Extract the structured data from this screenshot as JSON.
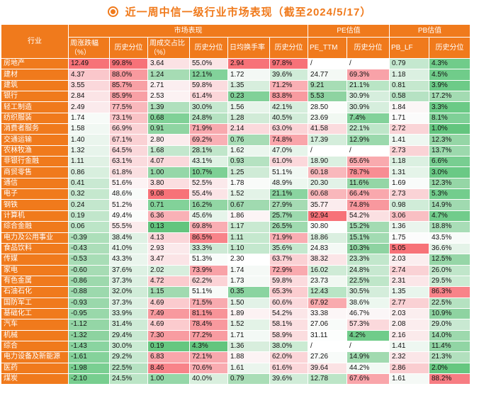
{
  "title": "近一周中信一级行业市场表现（截至2024/5/17）",
  "header": {
    "industry": "行业",
    "groups": [
      "市场表现",
      "PE估值",
      "PB估值"
    ],
    "columns": [
      "周涨跌幅（%）",
      "历史分位",
      "周成交占比（%）",
      "历史分位",
      "日均换手率",
      "历史分位",
      "PE_TTM",
      "历史分位",
      "PB_LF",
      "历史分位"
    ]
  },
  "rows": [
    {
      "name": "房地产",
      "cells": [
        [
          "12.49",
          "#f77278"
        ],
        [
          "99.8%",
          "#f77278"
        ],
        [
          "3.64",
          "#fbe2e4"
        ],
        [
          "55.0%",
          "#fbe5e6"
        ],
        [
          "2.94",
          "#f77278"
        ],
        [
          "97.8%",
          "#f77278"
        ],
        [
          "/",
          "#ffffff"
        ],
        [
          "/",
          "#ffffff"
        ],
        [
          "0.79",
          "#c4e8cf"
        ],
        [
          "4.3%",
          "#70cc8a"
        ]
      ]
    },
    {
      "name": "建材",
      "cells": [
        [
          "4.37",
          "#fac7cb"
        ],
        [
          "88.0%",
          "#f8999e"
        ],
        [
          "1.24",
          "#a6dcb4"
        ],
        [
          "12.1%",
          "#82d29a"
        ],
        [
          "1.72",
          "#f4f8f5"
        ],
        [
          "39.6%",
          "#d0ecd8"
        ],
        [
          "24.77",
          "#f4f9f5"
        ],
        [
          "69.3%",
          "#f8a2a8"
        ],
        [
          "1.18",
          "#dbf0e1"
        ],
        [
          "4.5%",
          "#70cc8a"
        ]
      ]
    },
    {
      "name": "建筑",
      "cells": [
        [
          "3.55",
          "#fbd8db"
        ],
        [
          "85.7%",
          "#f8a0a5"
        ],
        [
          "2.71",
          "#fbeef0"
        ],
        [
          "59.8%",
          "#fbdcdf"
        ],
        [
          "1.35",
          "#d7eedd"
        ],
        [
          "71.2%",
          "#faafb4"
        ],
        [
          "9.21",
          "#a7ddb5"
        ],
        [
          "21.1%",
          "#b9e5c5"
        ],
        [
          "0.81",
          "#c5e8ce"
        ],
        [
          "3.9%",
          "#6dcb88"
        ]
      ]
    },
    {
      "name": "银行",
      "cells": [
        [
          "2.84",
          "#fbe4e6"
        ],
        [
          "85.9%",
          "#f8a0a5"
        ],
        [
          "2.53",
          "#fcf2f3"
        ],
        [
          "61.4%",
          "#fbd6d9"
        ],
        [
          "0.23",
          "#81d198"
        ],
        [
          "83.8%",
          "#f89ba0"
        ],
        [
          "5.53",
          "#8ed3a1"
        ],
        [
          "30.9%",
          "#d6eedd"
        ],
        [
          "0.58",
          "#b6e2c3"
        ],
        [
          "17.2%",
          "#a3dbb2"
        ]
      ]
    },
    {
      "name": "轻工制造",
      "cells": [
        [
          "2.49",
          "#fbeaec"
        ],
        [
          "77.5%",
          "#f9b8bc"
        ],
        [
          "1.39",
          "#b0e0bd"
        ],
        [
          "30.0%",
          "#c5e8cf"
        ],
        [
          "1.56",
          "#e7f4ea"
        ],
        [
          "42.1%",
          "#d6eedd"
        ],
        [
          "28.50",
          "#fbfdfb"
        ],
        [
          "30.9%",
          "#d6eedd"
        ],
        [
          "1.84",
          "#fbf6f6"
        ],
        [
          "3.3%",
          "#6bca86"
        ]
      ]
    },
    {
      "name": "纺织服装",
      "cells": [
        [
          "1.74",
          "#f7fbf8"
        ],
        [
          "73.1%",
          "#f9c3c6"
        ],
        [
          "0.68",
          "#80d197"
        ],
        [
          "24.8%",
          "#b5e2c1"
        ],
        [
          "1.28",
          "#d1ebd7"
        ],
        [
          "40.5%",
          "#d2ecd9"
        ],
        [
          "23.69",
          "#f1f8f2"
        ],
        [
          "7.4%",
          "#82d29a"
        ],
        [
          "1.71",
          "#fbfbfb"
        ],
        [
          "8.1%",
          "#7fd097"
        ]
      ]
    },
    {
      "name": "消费者服务",
      "cells": [
        [
          "1.58",
          "#f1f8f3"
        ],
        [
          "66.9%",
          "#fad2d5"
        ],
        [
          "0.91",
          "#8fd5a2"
        ],
        [
          "71.9%",
          "#f8a9ae"
        ],
        [
          "2.14",
          "#fbd9dc"
        ],
        [
          "63.0%",
          "#fbd3d6"
        ],
        [
          "41.58",
          "#fbdbde"
        ],
        [
          "22.1%",
          "#bee6c9"
        ],
        [
          "2.72",
          "#fad4d7"
        ],
        [
          "1.0%",
          "#63c57e"
        ]
      ]
    },
    {
      "name": "交通运输",
      "cells": [
        [
          "1.40",
          "#eaf5ed"
        ],
        [
          "67.1%",
          "#fad1d4"
        ],
        [
          "2.80",
          "#fbeced"
        ],
        [
          "69.2%",
          "#f9b0b5"
        ],
        [
          "0.76",
          "#a7dcb5"
        ],
        [
          "74.8%",
          "#f9a5aa"
        ],
        [
          "17.39",
          "#d4eddb"
        ],
        [
          "12.9%",
          "#9bd9ad"
        ],
        [
          "1.41",
          "#eef7f1"
        ],
        [
          "12.3%",
          "#95d6a6"
        ]
      ]
    },
    {
      "name": "农林牧渔",
      "cells": [
        [
          "1.32",
          "#e7f4eb"
        ],
        [
          "64.5%",
          "#fad8db"
        ],
        [
          "1.68",
          "#c3e7cd"
        ],
        [
          "28.1%",
          "#c0e6ca"
        ],
        [
          "1.62",
          "#ebf6ee"
        ],
        [
          "47.0%",
          "#e6f4ea"
        ],
        [
          "/",
          "#ffffff"
        ],
        [
          "/",
          "#ffffff"
        ],
        [
          "2.73",
          "#fad3d6"
        ],
        [
          "13.7%",
          "#9cd9ad"
        ]
      ]
    },
    {
      "name": "非银行金融",
      "cells": [
        [
          "1.11",
          "#e0f1e4"
        ],
        [
          "63.1%",
          "#fadbde"
        ],
        [
          "4.07",
          "#fad8db"
        ],
        [
          "43.1%",
          "#dff2e4"
        ],
        [
          "0.93",
          "#b5e2c1"
        ],
        [
          "61.0%",
          "#fbd8db"
        ],
        [
          "18.90",
          "#dbf0e1"
        ],
        [
          "65.6%",
          "#f9aaae"
        ],
        [
          "1.18",
          "#dbf0e1"
        ],
        [
          "6.6%",
          "#78ce91"
        ]
      ]
    },
    {
      "name": "商贸零售",
      "cells": [
        [
          "0.86",
          "#d8efde"
        ],
        [
          "61.8%",
          "#fadfe1"
        ],
        [
          "1.00",
          "#95d7a8"
        ],
        [
          "10.7%",
          "#7dd095"
        ],
        [
          "1.25",
          "#cfebd6"
        ],
        [
          "51.1%",
          "#f1f8f3"
        ],
        [
          "60.18",
          "#f9b8bc"
        ],
        [
          "78.7%",
          "#f88d93"
        ],
        [
          "1.31",
          "#e5f4e9"
        ],
        [
          "3.0%",
          "#6ac985"
        ]
      ]
    },
    {
      "name": "通信",
      "cells": [
        [
          "0.41",
          "#c9e9d2"
        ],
        [
          "51.6%",
          "#fcf3f4"
        ],
        [
          "3.80",
          "#fbdee0"
        ],
        [
          "52.5%",
          "#fbe9eb"
        ],
        [
          "1.78",
          "#f9fbf9"
        ],
        [
          "48.9%",
          "#ecf7ef"
        ],
        [
          "20.30",
          "#e2f2e7"
        ],
        [
          "11.6%",
          "#94d6a6"
        ],
        [
          "1.69",
          "#f9fbfa"
        ],
        [
          "12.3%",
          "#95d6a6"
        ]
      ]
    },
    {
      "name": "电子",
      "cells": [
        [
          "0.32",
          "#c5e8ce"
        ],
        [
          "48.6%",
          "#f8fbf9"
        ],
        [
          "9.08",
          "#f77278"
        ],
        [
          "55.4%",
          "#fbe4e6"
        ],
        [
          "1.52",
          "#e3f3e7"
        ],
        [
          "21.1%",
          "#8ad4a0"
        ],
        [
          "60.68",
          "#f9b7bb"
        ],
        [
          "66.4%",
          "#f9a8ad"
        ],
        [
          "2.73",
          "#fad3d6"
        ],
        [
          "5.3%",
          "#73cd8d"
        ]
      ]
    },
    {
      "name": "钢铁",
      "cells": [
        [
          "0.24",
          "#c3e7cd"
        ],
        [
          "51.2%",
          "#fcf4f5"
        ],
        [
          "0.71",
          "#82d299"
        ],
        [
          "16.2%",
          "#92d6a4"
        ],
        [
          "0.67",
          "#a0dab0"
        ],
        [
          "27.9%",
          "#a5dbb3"
        ],
        [
          "35.77",
          "#fbecee"
        ],
        [
          "74.8%",
          "#f8989e"
        ],
        [
          "0.98",
          "#d0ecd8"
        ],
        [
          "14.9%",
          "#a0dab0"
        ]
      ]
    },
    {
      "name": "计算机",
      "cells": [
        [
          "0.19",
          "#c1e6cb"
        ],
        [
          "49.4%",
          "#fafcfa"
        ],
        [
          "6.36",
          "#f9b1b6"
        ],
        [
          "45.6%",
          "#e6f4ea"
        ],
        [
          "1.86",
          "#fcf4f5"
        ],
        [
          "25.7%",
          "#9cd9ad"
        ],
        [
          "92.94",
          "#f77278"
        ],
        [
          "54.2%",
          "#fbe0e2"
        ],
        [
          "3.06",
          "#f9bfc3"
        ],
        [
          "4.7%",
          "#71cc8b"
        ]
      ]
    },
    {
      "name": "综合金融",
      "cells": [
        [
          "0.06",
          "#bce5c7"
        ],
        [
          "55.5%",
          "#fbebec"
        ],
        [
          "0.13",
          "#63c57e"
        ],
        [
          "69.8%",
          "#f9aeb3"
        ],
        [
          "1.17",
          "#c9e9d1"
        ],
        [
          "26.5%",
          "#9fdaaf"
        ],
        [
          "30.80",
          "#fcfefd"
        ],
        [
          "15.2%",
          "#a3dbb2"
        ],
        [
          "1.36",
          "#eaf5ed"
        ],
        [
          "18.8%",
          "#a9ddb7"
        ]
      ]
    },
    {
      "name": "电力及公用事业",
      "cells": [
        [
          "-0.39",
          "#addfba"
        ],
        [
          "38.4%",
          "#dff1e4"
        ],
        [
          "4.13",
          "#fad6d9"
        ],
        [
          "86.5%",
          "#f88389"
        ],
        [
          "1.11",
          "#c5e8ce"
        ],
        [
          "71.9%",
          "#f9adb2"
        ],
        [
          "18.86",
          "#daefe0"
        ],
        [
          "15.1%",
          "#a2dbb2"
        ],
        [
          "1.75",
          "#fcfcfc"
        ],
        [
          "43.5%",
          "#f8fbf9"
        ]
      ]
    },
    {
      "name": "食品饮料",
      "cells": [
        [
          "-0.43",
          "#acdeb9"
        ],
        [
          "41.0%",
          "#e5f4e9"
        ],
        [
          "2.93",
          "#fbe9eb"
        ],
        [
          "33.3%",
          "#cde9d5"
        ],
        [
          "1.10",
          "#c4e8ce"
        ],
        [
          "35.6%",
          "#c4e8ce"
        ],
        [
          "24.83",
          "#f4f9f5"
        ],
        [
          "10.3%",
          "#8ed3a1"
        ],
        [
          "5.05",
          "#f77278"
        ],
        [
          "36.6%",
          "#e4f3e8"
        ]
      ]
    },
    {
      "name": "传媒",
      "cells": [
        [
          "-0.53",
          "#a8ddb6"
        ],
        [
          "43.3%",
          "#eaf5ed"
        ],
        [
          "3.47",
          "#fbe4e6"
        ],
        [
          "51.3%",
          "#f9fcfa"
        ],
        [
          "2.30",
          "#face0d1"
        ],
        [
          "63.7%",
          "#fbd1d4"
        ],
        [
          "38.32",
          "#fbe5e7"
        ],
        [
          "23.3%",
          "#c2e7cc"
        ],
        [
          "2.03",
          "#fbeeef"
        ],
        [
          "12.5%",
          "#96d6a7"
        ]
      ]
    },
    {
      "name": "家电",
      "cells": [
        [
          "-0.60",
          "#a6dcb4"
        ],
        [
          "37.6%",
          "#ddf1e3"
        ],
        [
          "2.02",
          "#d7eedd"
        ],
        [
          "73.9%",
          "#f8a2a7"
        ],
        [
          "1.74",
          "#f5f9f6"
        ],
        [
          "72.9%",
          "#f9aaaf"
        ],
        [
          "16.02",
          "#cfebd6"
        ],
        [
          "24.8%",
          "#c7e8d0"
        ],
        [
          "2.74",
          "#fad2d5"
        ],
        [
          "26.0%",
          "#c0e6ca"
        ]
      ]
    },
    {
      "name": "有色金属",
      "cells": [
        [
          "-0.86",
          "#9dd9ad"
        ],
        [
          "37.3%",
          "#dcf0e2"
        ],
        [
          "4.72",
          "#fbcbce"
        ],
        [
          "62.2%",
          "#fbd3d6"
        ],
        [
          "1.73",
          "#f5f9f6"
        ],
        [
          "59.8%",
          "#fbdbde"
        ],
        [
          "23.73",
          "#f1f8f2"
        ],
        [
          "22.5%",
          "#bfe6c9"
        ],
        [
          "2.31",
          "#fbe6e8"
        ],
        [
          "29.5%",
          "#cbebd3"
        ]
      ]
    },
    {
      "name": "石油石化",
      "cells": [
        [
          "-0.88",
          "#9cd9ad"
        ],
        [
          "32.0%",
          "#d0ecd8"
        ],
        [
          "1.15",
          "#a1dab0"
        ],
        [
          "51.1%",
          "#f7fbf8"
        ],
        [
          "0.35",
          "#8ad4a0"
        ],
        [
          "65.3%",
          "#fbcdd0"
        ],
        [
          "12.43",
          "#b9e5c5"
        ],
        [
          "30.5%",
          "#d4eddb"
        ],
        [
          "1.35",
          "#e8f5ec"
        ],
        [
          "86.3%",
          "#f88389"
        ]
      ]
    },
    {
      "name": "国防军工",
      "cells": [
        [
          "-0.93",
          "#9ad8ab"
        ],
        [
          "37.3%",
          "#dcf0e2"
        ],
        [
          "4.69",
          "#fbcbce"
        ],
        [
          "71.5%",
          "#f8aaaf"
        ],
        [
          "1.50",
          "#e2f2e7"
        ],
        [
          "60.6%",
          "#fbd9dc"
        ],
        [
          "67.92",
          "#f9aaae"
        ],
        [
          "38.6%",
          "#ecf7ef"
        ],
        [
          "2.77",
          "#fad1d4"
        ],
        [
          "22.5%",
          "#b5e2c1"
        ]
      ]
    },
    {
      "name": "基础化工",
      "cells": [
        [
          "-0.95",
          "#99d8aa"
        ],
        [
          "33.9%",
          "#d4eddb"
        ],
        [
          "7.49",
          "#f8999e"
        ],
        [
          "81.1%",
          "#f89398"
        ],
        [
          "1.89",
          "#fcf2f3"
        ],
        [
          "54.2%",
          "#fbe6e8"
        ],
        [
          "33.38",
          "#fcf6f7"
        ],
        [
          "46.7%",
          "#fbf6f7"
        ],
        [
          "2.03",
          "#fbeeef"
        ],
        [
          "10.9%",
          "#8ed3a1"
        ]
      ]
    },
    {
      "name": "汽车",
      "cells": [
        [
          "-1.12",
          "#94d6a6"
        ],
        [
          "31.4%",
          "#ceebd6"
        ],
        [
          "4.69",
          "#fbcbce"
        ],
        [
          "78.4%",
          "#f8999e"
        ],
        [
          "1.52",
          "#e3f3e7"
        ],
        [
          "58.1%",
          "#fbdfe1"
        ],
        [
          "27.06",
          "#f8fbf9"
        ],
        [
          "57.3%",
          "#fbd9dc"
        ],
        [
          "2.08",
          "#fbedee"
        ],
        [
          "29.0%",
          "#c9e9d2"
        ]
      ]
    },
    {
      "name": "机械",
      "cells": [
        [
          "-1.32",
          "#8dd3a0"
        ],
        [
          "29.4%",
          "#c9e9d2"
        ],
        [
          "7.30",
          "#f89ca1"
        ],
        [
          "77.2%",
          "#f89ca1"
        ],
        [
          "1.71",
          "#f3f9f5"
        ],
        [
          "58.9%",
          "#fbdddf"
        ],
        [
          "31.11",
          "#fcfefd"
        ],
        [
          "4.2%",
          "#70cc8a"
        ],
        [
          "2.16",
          "#fbeaeb"
        ],
        [
          "14.0%",
          "#9dd9ad"
        ]
      ]
    },
    {
      "name": "综合",
      "cells": [
        [
          "-1.43",
          "#8ad4a0"
        ],
        [
          "30.0%",
          "#caebd3"
        ],
        [
          "0.19",
          "#66c780"
        ],
        [
          "4.3%",
          "#63c57e"
        ],
        [
          "1.36",
          "#d8eedd"
        ],
        [
          "38.0%",
          "#cbebd3"
        ],
        [
          "/",
          "#ffffff"
        ],
        [
          "/",
          "#ffffff"
        ],
        [
          "1.41",
          "#eef7f1"
        ],
        [
          "11.4%",
          "#91d5a4"
        ]
      ]
    },
    {
      "name": "电力设备及新能源",
      "cells": [
        [
          "-1.61",
          "#85d29b"
        ],
        [
          "29.2%",
          "#c8e9d1"
        ],
        [
          "6.83",
          "#f9a6ab"
        ],
        [
          "72.1%",
          "#f8a8ad"
        ],
        [
          "1.88",
          "#fcf3f4"
        ],
        [
          "62.0%",
          "#fbd5d8"
        ],
        [
          "27.26",
          "#f8fbf9"
        ],
        [
          "14.9%",
          "#a1dab0"
        ],
        [
          "2.32",
          "#fbe6e8"
        ],
        [
          "21.3%",
          "#b2e0be"
        ]
      ]
    },
    {
      "name": "医药",
      "cells": [
        [
          "-1.98",
          "#7acf92"
        ],
        [
          "22.5%",
          "#b6e2c2"
        ],
        [
          "8.46",
          "#f88389"
        ],
        [
          "70.6%",
          "#f9acb1"
        ],
        [
          "1.61",
          "#eaf5ed"
        ],
        [
          "61.6%",
          "#fbd7da"
        ],
        [
          "39.64",
          "#fbe2e4"
        ],
        [
          "44.2%",
          "#f2f9f4"
        ],
        [
          "2.86",
          "#facdd0"
        ],
        [
          "2.0%",
          "#66c780"
        ]
      ]
    },
    {
      "name": "煤炭",
      "cells": [
        [
          "-2.10",
          "#77ce8f"
        ],
        [
          "24.5%",
          "#bbe5c6"
        ],
        [
          "1.00",
          "#95d7a8"
        ],
        [
          "40.0%",
          "#d9efde"
        ],
        [
          "0.79",
          "#a9ddb6"
        ],
        [
          "39.6%",
          "#d0ecd8"
        ],
        [
          "12.78",
          "#bce5c7"
        ],
        [
          "67.6%",
          "#f9a5aa"
        ],
        [
          "1.61",
          "#f5f9f6"
        ],
        [
          "88.2%",
          "#f77d83"
        ]
      ]
    }
  ]
}
